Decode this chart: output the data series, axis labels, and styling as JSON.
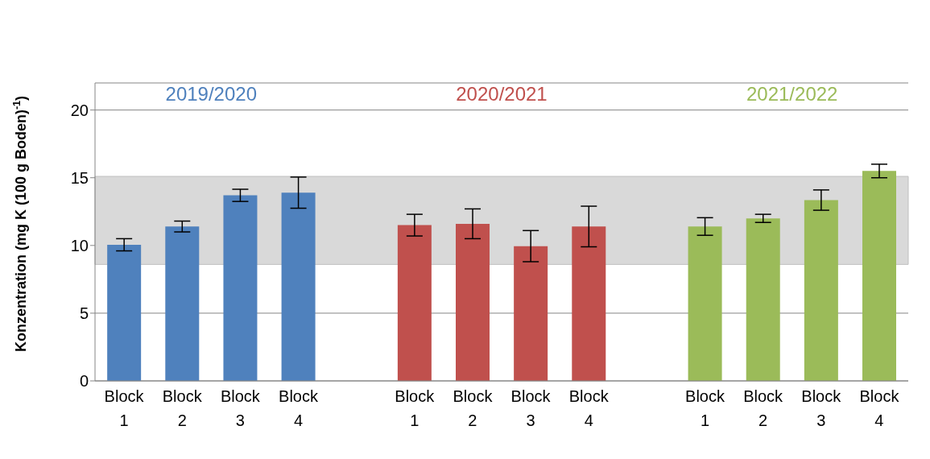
{
  "chart_data": {
    "type": "bar",
    "ylabel": "Konzentration (mg K (100 g Boden)$^{-1}$)",
    "categories": [
      "Block 1",
      "Block 2",
      "Block 3",
      "Block 4",
      null,
      "Block 1",
      "Block 2",
      "Block 3",
      "Block 4",
      null,
      "Block 1",
      "Block 2",
      "Block 3",
      "Block 4"
    ],
    "series": [
      {
        "name": "2019/2020",
        "color": "#4f81bd",
        "values": [
          10.05,
          11.4,
          13.7,
          13.9,
          null,
          null,
          null,
          null,
          null,
          null,
          null,
          null,
          null,
          null
        ],
        "errors": [
          0.45,
          0.4,
          0.45,
          1.15,
          null,
          null,
          null,
          null,
          null,
          null,
          null,
          null,
          null,
          null
        ]
      },
      {
        "name": "2020/2021",
        "color": "#c0504d",
        "values": [
          null,
          null,
          null,
          null,
          null,
          11.5,
          11.6,
          9.95,
          11.4,
          null,
          null,
          null,
          null,
          null
        ],
        "errors": [
          null,
          null,
          null,
          null,
          null,
          0.8,
          1.1,
          1.15,
          1.5,
          null,
          null,
          null,
          null,
          null
        ]
      },
      {
        "name": "2021/2022",
        "color": "#9bbb59",
        "values": [
          null,
          null,
          null,
          null,
          null,
          null,
          null,
          null,
          null,
          null,
          11.4,
          12.0,
          13.35,
          15.5
        ],
        "errors": [
          null,
          null,
          null,
          null,
          null,
          null,
          null,
          null,
          null,
          null,
          0.65,
          0.3,
          0.75,
          0.5
        ]
      }
    ],
    "bands": [
      {
        "axis": "y",
        "from": 8.6,
        "to": 15.1,
        "color": "#d9d9d9"
      }
    ],
    "ylim": [
      0,
      22
    ],
    "yticks": [
      0,
      5,
      10,
      15,
      20
    ],
    "grid": "y"
  }
}
